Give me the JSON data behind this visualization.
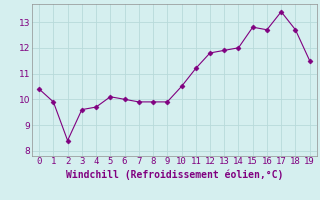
{
  "x": [
    0,
    1,
    2,
    3,
    4,
    5,
    6,
    7,
    8,
    9,
    10,
    11,
    12,
    13,
    14,
    15,
    16,
    17,
    18,
    19
  ],
  "y": [
    10.4,
    9.9,
    8.4,
    9.6,
    9.7,
    10.1,
    10.0,
    9.9,
    9.9,
    9.9,
    10.5,
    11.2,
    11.8,
    11.9,
    12.0,
    12.8,
    12.7,
    13.4,
    12.7,
    11.5
  ],
  "line_color": "#800080",
  "marker": "D",
  "marker_size": 2.5,
  "line_width": 0.8,
  "xlabel": "Windchill (Refroidissement éolien,°C)",
  "xlabel_fontsize": 7,
  "xlim": [
    -0.5,
    19.5
  ],
  "ylim": [
    7.8,
    13.7
  ],
  "yticks": [
    8,
    9,
    10,
    11,
    12,
    13
  ],
  "xticks": [
    0,
    1,
    2,
    3,
    4,
    5,
    6,
    7,
    8,
    9,
    10,
    11,
    12,
    13,
    14,
    15,
    16,
    17,
    18,
    19
  ],
  "tick_fontsize": 6.5,
  "bg_color": "#d5efef",
  "grid_color": "#b8dada",
  "axes_color": "#800080",
  "spine_color": "#909090"
}
